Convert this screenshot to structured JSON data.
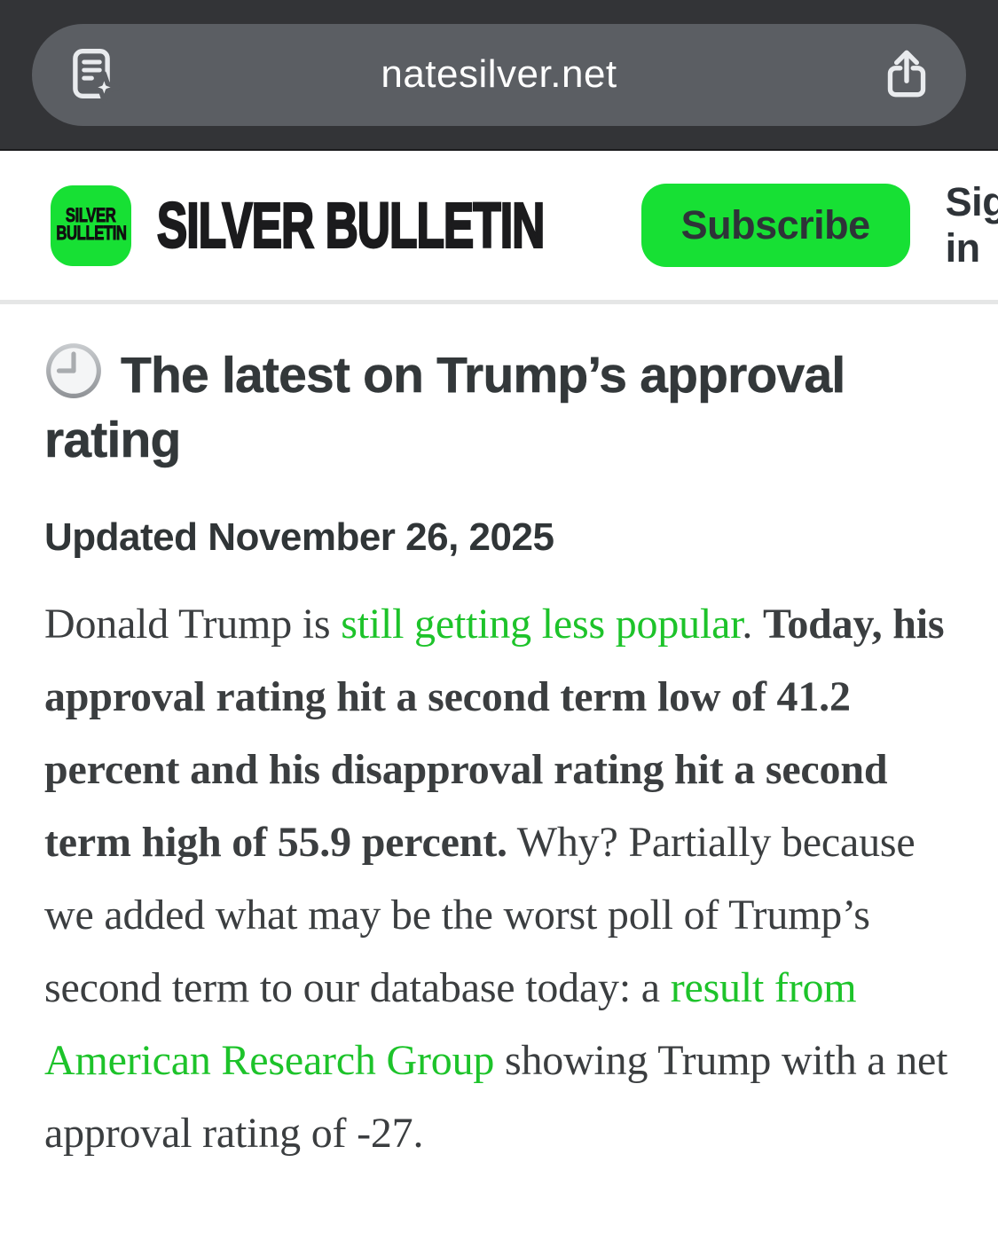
{
  "browser": {
    "url": "natesilver.net",
    "icons": {
      "left": "reader-page-sparkle-icon",
      "right": "share-icon"
    }
  },
  "header": {
    "logo_line1": "SILVER",
    "logo_line2": "BULLETIN",
    "wordmark": "SILVER BULLETIN",
    "subscribe_label": "Subscribe",
    "signin_label": "Sign in"
  },
  "article": {
    "title_icon": "clock-icon",
    "title": "The latest on Trump’s approval rating",
    "updated": "Updated November 26, 2025",
    "body": [
      {
        "style": "normal",
        "text": "Donald Trump is "
      },
      {
        "style": "link",
        "text": "still getting less popular"
      },
      {
        "style": "normal",
        "text": ". "
      },
      {
        "style": "bold",
        "text": "Today, his approval rating hit a second term low of 41.2 percent and his disapproval rating hit a second term high of 55.9 percent."
      },
      {
        "style": "normal",
        "text": " Why? Partially because we added what may be the worst poll of Trump’s second term to our database today: a "
      },
      {
        "style": "link",
        "text": "result from American Research Group"
      },
      {
        "style": "normal",
        "text": " showing Trump with a net approval rating of -27."
      }
    ]
  },
  "colors": {
    "topbar_bg": "#333437",
    "url_pill_bg": "#5b5e63",
    "brand_green": "#17e034",
    "link_green": "#1dc32a",
    "divider": "#e5e6e6",
    "text_dark": "#33383a"
  }
}
